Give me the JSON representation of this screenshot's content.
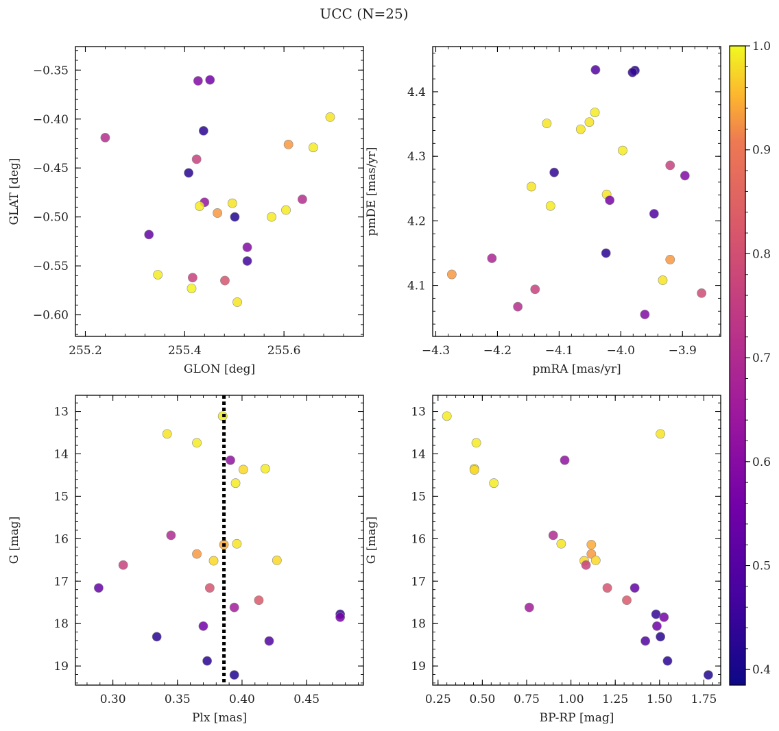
{
  "figure": {
    "title": "UCC (N=25)"
  },
  "colorbar": {
    "min": 0.385,
    "max": 1.0,
    "ticks": [
      0.4,
      0.5,
      0.6,
      0.7,
      0.8,
      0.9,
      1.0
    ],
    "tick_labels": [
      "0.4",
      "0.5",
      "0.6",
      "0.7",
      "0.8",
      "0.9",
      "1.0"
    ],
    "colormap": "plasma"
  },
  "chart_data": [
    {
      "type": "scatter",
      "id": "glon-glat",
      "title": "",
      "xlabel": "GLON [deg]",
      "ylabel": "GLAT [deg]",
      "xlim": [
        255.18,
        255.76
      ],
      "ylim": [
        -0.622,
        -0.326
      ],
      "y_inverted": false,
      "xticks": [
        255.2,
        255.4,
        255.6
      ],
      "xtick_labels": [
        "255.2",
        "255.4",
        "255.6"
      ],
      "yticks": [
        -0.35,
        -0.4,
        -0.45,
        -0.5,
        -0.55,
        -0.6
      ],
      "ytick_labels": [
        "−0.35",
        "−0.40",
        "−0.45",
        "−0.50",
        "−0.55",
        "−0.60"
      ],
      "points": [
        {
          "x": 255.427,
          "y": -0.361,
          "c": 0.55
        },
        {
          "x": 255.451,
          "y": -0.36,
          "c": 0.52
        },
        {
          "x": 255.438,
          "y": -0.412,
          "c": 0.42
        },
        {
          "x": 255.693,
          "y": -0.398,
          "c": 0.97
        },
        {
          "x": 255.24,
          "y": -0.419,
          "c": 0.64
        },
        {
          "x": 255.609,
          "y": -0.426,
          "c": 0.85
        },
        {
          "x": 255.659,
          "y": -0.429,
          "c": 0.98
        },
        {
          "x": 255.424,
          "y": -0.441,
          "c": 0.68
        },
        {
          "x": 255.408,
          "y": -0.455,
          "c": 0.42
        },
        {
          "x": 255.44,
          "y": -0.485,
          "c": 0.58
        },
        {
          "x": 255.43,
          "y": -0.489,
          "c": 0.98
        },
        {
          "x": 255.496,
          "y": -0.486,
          "c": 0.97
        },
        {
          "x": 255.637,
          "y": -0.482,
          "c": 0.64
        },
        {
          "x": 255.466,
          "y": -0.496,
          "c": 0.85
        },
        {
          "x": 255.604,
          "y": -0.493,
          "c": 0.98
        },
        {
          "x": 255.501,
          "y": -0.5,
          "c": 0.41
        },
        {
          "x": 255.575,
          "y": -0.5,
          "c": 0.98
        },
        {
          "x": 255.328,
          "y": -0.518,
          "c": 0.5
        },
        {
          "x": 255.526,
          "y": -0.531,
          "c": 0.55
        },
        {
          "x": 255.526,
          "y": -0.545,
          "c": 0.45
        },
        {
          "x": 255.346,
          "y": -0.559,
          "c": 0.98
        },
        {
          "x": 255.416,
          "y": -0.562,
          "c": 0.68
        },
        {
          "x": 255.481,
          "y": -0.565,
          "c": 0.72
        },
        {
          "x": 255.414,
          "y": -0.573,
          "c": 0.99
        },
        {
          "x": 255.506,
          "y": -0.587,
          "c": 0.97
        }
      ]
    },
    {
      "type": "scatter",
      "id": "pmra-pmde",
      "title": "",
      "xlabel": "pmRA [mas/yr]",
      "ylabel": "pmDE [mas/yr]",
      "xlim": [
        -4.305,
        -3.838
      ],
      "ylim": [
        4.021,
        4.47
      ],
      "y_inverted": false,
      "xticks": [
        -4.3,
        -4.2,
        -4.1,
        -4.0,
        -3.9
      ],
      "xtick_labels": [
        "−4.3",
        "−4.2",
        "−4.1",
        "−4.0",
        "−3.9"
      ],
      "yticks": [
        4.1,
        4.2,
        4.3,
        4.4
      ],
      "ytick_labels": [
        "4.1",
        "4.2",
        "4.3",
        "4.4"
      ],
      "points": [
        {
          "x": -4.041,
          "y": 4.434,
          "c": 0.47
        },
        {
          "x": -3.977,
          "y": 4.433,
          "c": 0.42
        },
        {
          "x": -3.981,
          "y": 4.43,
          "c": 0.43
        },
        {
          "x": -4.042,
          "y": 4.368,
          "c": 0.98
        },
        {
          "x": -4.051,
          "y": 4.353,
          "c": 0.97
        },
        {
          "x": -4.12,
          "y": 4.351,
          "c": 0.97
        },
        {
          "x": -4.065,
          "y": 4.342,
          "c": 0.97
        },
        {
          "x": -3.997,
          "y": 4.309,
          "c": 0.98
        },
        {
          "x": -3.92,
          "y": 4.286,
          "c": 0.68
        },
        {
          "x": -4.108,
          "y": 4.275,
          "c": 0.43
        },
        {
          "x": -3.896,
          "y": 4.27,
          "c": 0.55
        },
        {
          "x": -4.145,
          "y": 4.253,
          "c": 0.97
        },
        {
          "x": -4.023,
          "y": 4.241,
          "c": 0.97
        },
        {
          "x": -4.018,
          "y": 4.232,
          "c": 0.53
        },
        {
          "x": -4.114,
          "y": 4.223,
          "c": 0.98
        },
        {
          "x": -3.946,
          "y": 4.211,
          "c": 0.47
        },
        {
          "x": -4.024,
          "y": 4.15,
          "c": 0.42
        },
        {
          "x": -4.209,
          "y": 4.142,
          "c": 0.62
        },
        {
          "x": -3.92,
          "y": 4.14,
          "c": 0.85
        },
        {
          "x": -4.274,
          "y": 4.117,
          "c": 0.85
        },
        {
          "x": -3.932,
          "y": 4.108,
          "c": 0.97
        },
        {
          "x": -4.139,
          "y": 4.094,
          "c": 0.68
        },
        {
          "x": -3.869,
          "y": 4.088,
          "c": 0.7
        },
        {
          "x": -4.167,
          "y": 4.067,
          "c": 0.64
        },
        {
          "x": -3.961,
          "y": 4.055,
          "c": 0.55
        }
      ]
    },
    {
      "type": "scatter",
      "id": "plx-g",
      "title": "",
      "xlabel": "Plx [mas]",
      "ylabel": "G [mag]",
      "xlim": [
        0.271,
        0.494
      ],
      "ylim": [
        12.62,
        19.45
      ],
      "y_inverted": true,
      "xticks": [
        0.3,
        0.35,
        0.4,
        0.45
      ],
      "xtick_labels": [
        "0.30",
        "0.35",
        "0.40",
        "0.45"
      ],
      "yticks": [
        13,
        14,
        15,
        16,
        17,
        18,
        19
      ],
      "ytick_labels": [
        "13",
        "14",
        "15",
        "16",
        "17",
        "18",
        "19"
      ],
      "vline": {
        "x": 0.386,
        "style": "dotted"
      },
      "points": [
        {
          "x": 0.385,
          "y": 13.11,
          "c": 0.98
        },
        {
          "x": 0.342,
          "y": 13.53,
          "c": 0.97
        },
        {
          "x": 0.365,
          "y": 13.74,
          "c": 0.98
        },
        {
          "x": 0.391,
          "y": 14.15,
          "c": 0.57
        },
        {
          "x": 0.401,
          "y": 14.37,
          "c": 0.95
        },
        {
          "x": 0.418,
          "y": 14.35,
          "c": 0.98
        },
        {
          "x": 0.395,
          "y": 14.69,
          "c": 0.98
        },
        {
          "x": 0.345,
          "y": 15.92,
          "c": 0.63
        },
        {
          "x": 0.396,
          "y": 16.12,
          "c": 0.97
        },
        {
          "x": 0.386,
          "y": 16.14,
          "c": 0.88
        },
        {
          "x": 0.365,
          "y": 16.36,
          "c": 0.85
        },
        {
          "x": 0.378,
          "y": 16.52,
          "c": 0.95
        },
        {
          "x": 0.427,
          "y": 16.51,
          "c": 0.95
        },
        {
          "x": 0.308,
          "y": 16.62,
          "c": 0.68
        },
        {
          "x": 0.289,
          "y": 17.16,
          "c": 0.5
        },
        {
          "x": 0.375,
          "y": 17.16,
          "c": 0.72
        },
        {
          "x": 0.413,
          "y": 17.45,
          "c": 0.73
        },
        {
          "x": 0.394,
          "y": 17.62,
          "c": 0.6
        },
        {
          "x": 0.476,
          "y": 17.78,
          "c": 0.43
        },
        {
          "x": 0.476,
          "y": 17.85,
          "c": 0.53
        },
        {
          "x": 0.37,
          "y": 18.06,
          "c": 0.52
        },
        {
          "x": 0.334,
          "y": 18.31,
          "c": 0.42
        },
        {
          "x": 0.421,
          "y": 18.41,
          "c": 0.47
        },
        {
          "x": 0.373,
          "y": 18.88,
          "c": 0.42
        },
        {
          "x": 0.394,
          "y": 19.21,
          "c": 0.41
        }
      ]
    },
    {
      "type": "scatter",
      "id": "bprp-g",
      "title": "",
      "xlabel": "BP-RP [mag]",
      "ylabel": "G [mag]",
      "xlim": [
        0.22,
        1.845
      ],
      "ylim": [
        12.62,
        19.45
      ],
      "y_inverted": true,
      "xticks": [
        0.25,
        0.5,
        0.75,
        1.0,
        1.25,
        1.5,
        1.75
      ],
      "xtick_labels": [
        "0.25",
        "0.50",
        "0.75",
        "1.00",
        "1.25",
        "1.50",
        "1.75"
      ],
      "yticks": [
        13,
        14,
        15,
        16,
        17,
        18,
        19
      ],
      "ytick_labels": [
        "13",
        "14",
        "15",
        "16",
        "17",
        "18",
        "19"
      ],
      "points": [
        {
          "x": 0.3,
          "y": 13.11,
          "c": 0.98
        },
        {
          "x": 1.505,
          "y": 13.53,
          "c": 0.97
        },
        {
          "x": 0.466,
          "y": 13.74,
          "c": 0.98
        },
        {
          "x": 0.455,
          "y": 14.35,
          "c": 0.98
        },
        {
          "x": 0.455,
          "y": 14.38,
          "c": 0.95
        },
        {
          "x": 0.565,
          "y": 14.69,
          "c": 0.98
        },
        {
          "x": 0.965,
          "y": 14.15,
          "c": 0.57
        },
        {
          "x": 0.9,
          "y": 15.92,
          "c": 0.63
        },
        {
          "x": 0.945,
          "y": 16.12,
          "c": 0.97
        },
        {
          "x": 1.115,
          "y": 16.14,
          "c": 0.88
        },
        {
          "x": 1.115,
          "y": 16.36,
          "c": 0.85
        },
        {
          "x": 1.075,
          "y": 16.52,
          "c": 0.95
        },
        {
          "x": 1.14,
          "y": 16.51,
          "c": 0.95
        },
        {
          "x": 1.085,
          "y": 16.62,
          "c": 0.68
        },
        {
          "x": 1.205,
          "y": 17.16,
          "c": 0.72
        },
        {
          "x": 1.36,
          "y": 17.16,
          "c": 0.5
        },
        {
          "x": 1.315,
          "y": 17.45,
          "c": 0.73
        },
        {
          "x": 0.765,
          "y": 17.62,
          "c": 0.6
        },
        {
          "x": 1.48,
          "y": 17.78,
          "c": 0.43
        },
        {
          "x": 1.525,
          "y": 17.85,
          "c": 0.53
        },
        {
          "x": 1.485,
          "y": 18.06,
          "c": 0.52
        },
        {
          "x": 1.505,
          "y": 18.31,
          "c": 0.42
        },
        {
          "x": 1.42,
          "y": 18.41,
          "c": 0.47
        },
        {
          "x": 1.545,
          "y": 18.88,
          "c": 0.42
        },
        {
          "x": 1.775,
          "y": 19.21,
          "c": 0.41
        }
      ]
    }
  ]
}
